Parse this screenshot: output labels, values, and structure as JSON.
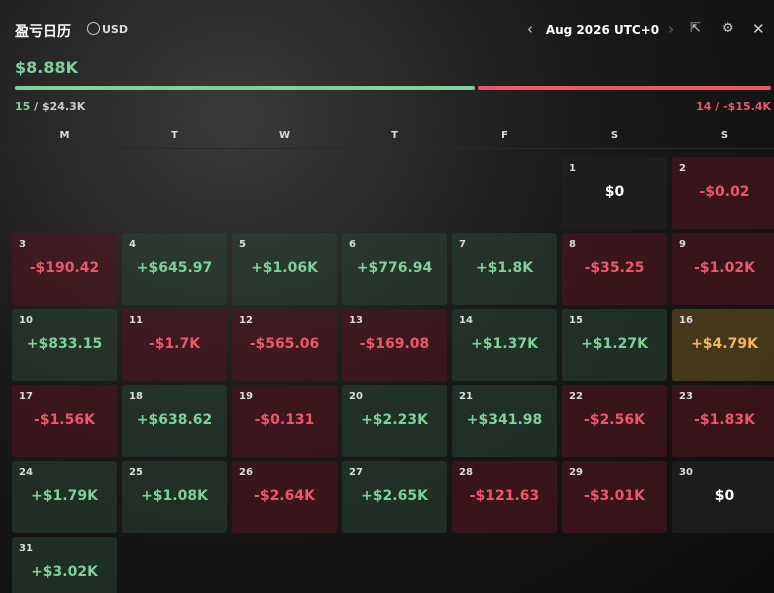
{
  "header": {
    "title": "盈亏日历",
    "currency": "USD",
    "month": "Aug 2026 UTC+0"
  },
  "summary": {
    "total": "$8.88K",
    "win_days": "15",
    "win_amount": "/ $24.3K",
    "loss_days": "14",
    "loss_amount": "/ -$15.4K"
  },
  "weekdays": [
    "M",
    "T",
    "W",
    "T",
    "F",
    "S",
    "S"
  ],
  "days": [
    {
      "day": "1",
      "pnl": "$0"
    },
    {
      "day": "2",
      "pnl": "-$0.02"
    },
    {
      "day": "3",
      "pnl": "-$190.42"
    },
    {
      "day": "4",
      "pnl": "+$645.97"
    },
    {
      "day": "5",
      "pnl": "+$1.06K"
    },
    {
      "day": "6",
      "pnl": "+$776.94"
    },
    {
      "day": "7",
      "pnl": "+$1.8K"
    },
    {
      "day": "8",
      "pnl": "-$35.25"
    },
    {
      "day": "9",
      "pnl": "-$1.02K"
    },
    {
      "day": "10",
      "pnl": "+$833.15"
    },
    {
      "day": "11",
      "pnl": "-$1.7K"
    },
    {
      "day": "12",
      "pnl": "-$565.06"
    },
    {
      "day": "13",
      "pnl": "-$169.08"
    },
    {
      "day": "14",
      "pnl": "+$1.37K"
    },
    {
      "day": "15",
      "pnl": "+$1.27K"
    },
    {
      "day": "16",
      "pnl": "+$4.79K"
    },
    {
      "day": "17",
      "pnl": "-$1.56K"
    },
    {
      "day": "18",
      "pnl": "+$638.62"
    },
    {
      "day": "19",
      "pnl": "-$0.131"
    },
    {
      "day": "20",
      "pnl": "+$2.23K"
    },
    {
      "day": "21",
      "pnl": "+$341.98"
    },
    {
      "day": "22",
      "pnl": "-$2.56K"
    },
    {
      "day": "23",
      "pnl": "-$1.83K"
    },
    {
      "day": "24",
      "pnl": "+$1.79K"
    },
    {
      "day": "25",
      "pnl": "+$1.08K"
    },
    {
      "day": "26",
      "pnl": "-$2.64K"
    },
    {
      "day": "27",
      "pnl": "+$2.65K"
    },
    {
      "day": "28",
      "pnl": "-$121.63"
    },
    {
      "day": "29",
      "pnl": "-$3.01K"
    },
    {
      "day": "30",
      "pnl": "$0"
    },
    {
      "day": "31",
      "pnl": "+$3.02K"
    }
  ]
}
